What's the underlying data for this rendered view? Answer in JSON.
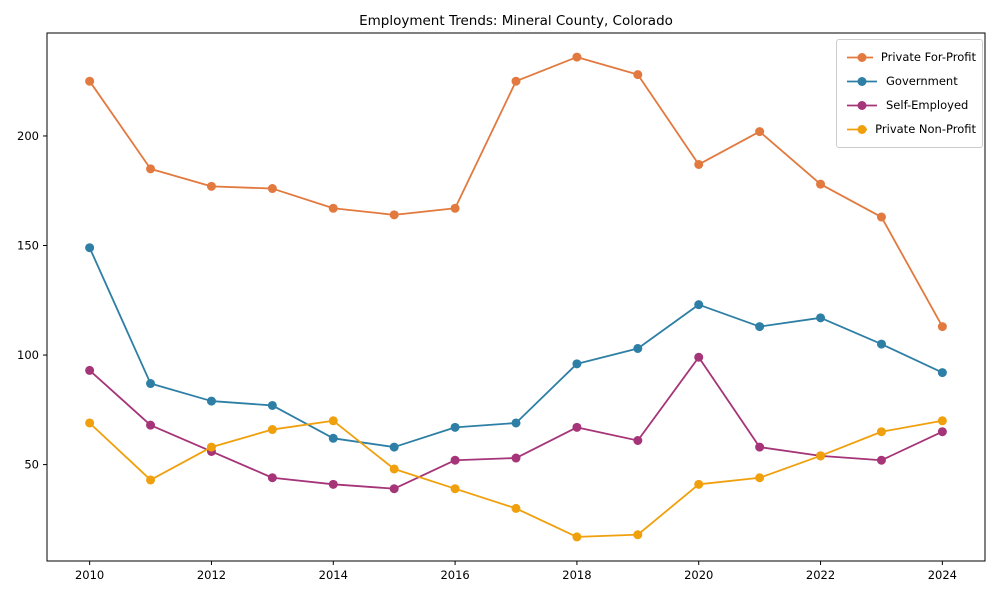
{
  "title": "Employment Trends: Mineral County, Colorado",
  "chart_data": {
    "type": "line",
    "title": "Employment Trends: Mineral County, Colorado",
    "xlabel": "",
    "ylabel": "",
    "grid": false,
    "legend_position": "upper right",
    "x": [
      2010,
      2011,
      2012,
      2013,
      2014,
      2015,
      2016,
      2017,
      2018,
      2019,
      2020,
      2021,
      2022,
      2023,
      2024
    ],
    "series": [
      {
        "name": "Private For-Profit",
        "color": "#E2793E",
        "values": [
          225,
          185,
          177,
          176,
          167,
          164,
          167,
          225,
          236,
          228,
          187,
          202,
          178,
          163,
          113
        ]
      },
      {
        "name": "Government",
        "color": "#2E7FA5",
        "values": [
          149,
          87,
          79,
          77,
          62,
          58,
          67,
          69,
          96,
          103,
          123,
          113,
          117,
          105,
          92
        ]
      },
      {
        "name": "Self-Employed",
        "color": "#A53478",
        "values": [
          93,
          68,
          56,
          44,
          41,
          39,
          52,
          53,
          67,
          61,
          99,
          58,
          54,
          52,
          65
        ]
      },
      {
        "name": "Private Non-Profit",
        "color": "#F0A00C",
        "values": [
          69,
          43,
          58,
          66,
          70,
          48,
          39,
          30,
          17,
          18,
          41,
          44,
          54,
          65,
          70
        ]
      }
    ],
    "xticks": [
      2010,
      2012,
      2014,
      2016,
      2018,
      2020,
      2022,
      2024
    ],
    "yticks": [
      50,
      100,
      150,
      200
    ],
    "xlim": [
      2009.3,
      2024.7
    ],
    "ylim": [
      6,
      247
    ],
    "axis_color": "#000000",
    "tick_label_color": "#000000"
  }
}
